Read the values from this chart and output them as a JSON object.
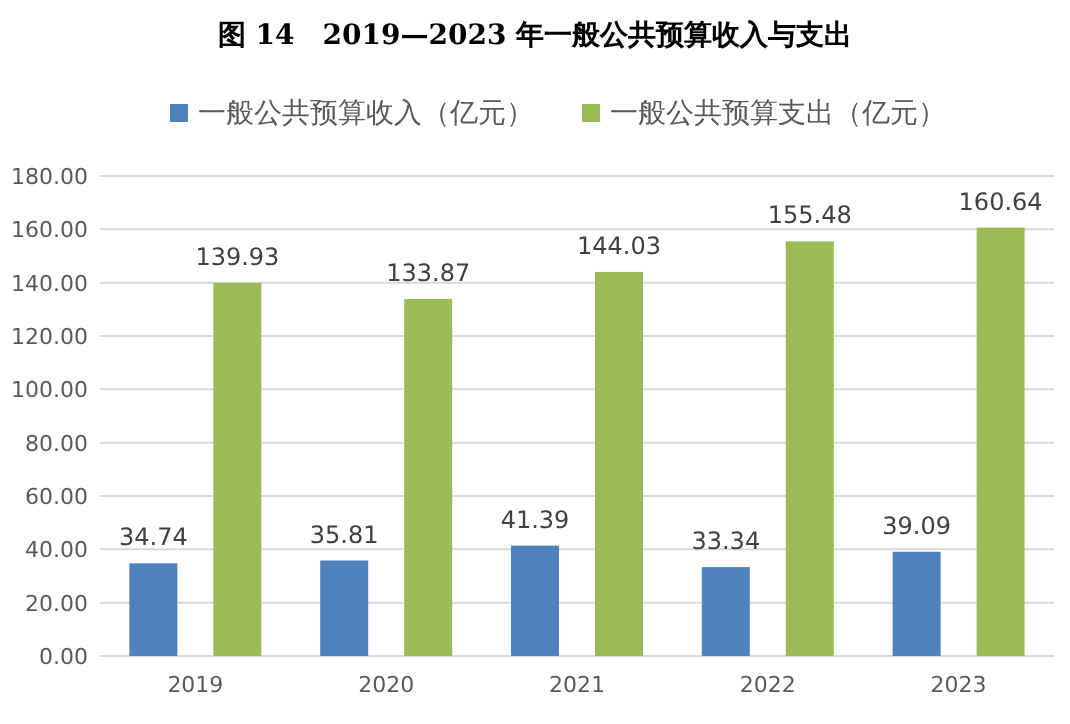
{
  "chart_data": {
    "type": "bar",
    "title": "图 14　2019—2023 年一般公共预算收入与支出",
    "categories": [
      "2019",
      "2020",
      "2021",
      "2022",
      "2023"
    ],
    "series": [
      {
        "name": "一般公共预算收入（亿元）",
        "color": "#4f81bd",
        "values": [
          34.74,
          35.81,
          41.39,
          33.34,
          39.09
        ]
      },
      {
        "name": "一般公共预算支出（亿元）",
        "color": "#9bbb59",
        "values": [
          139.93,
          133.87,
          144.03,
          155.48,
          160.64
        ]
      }
    ],
    "ylim": [
      0,
      180
    ],
    "yticks": [
      {
        "value": 0,
        "label": "0.00"
      },
      {
        "value": 20,
        "label": "20.00"
      },
      {
        "value": 40,
        "label": "40.00"
      },
      {
        "value": 60,
        "label": "60.00"
      },
      {
        "value": 80,
        "label": "80.00"
      },
      {
        "value": 100,
        "label": "100.00"
      },
      {
        "value": 120,
        "label": "120.00"
      },
      {
        "value": 140,
        "label": "140.00"
      },
      {
        "value": 160,
        "label": "160.00"
      },
      {
        "value": 180,
        "label": "180.00"
      }
    ],
    "grid": "y",
    "legend": "top",
    "data_labels": true
  }
}
